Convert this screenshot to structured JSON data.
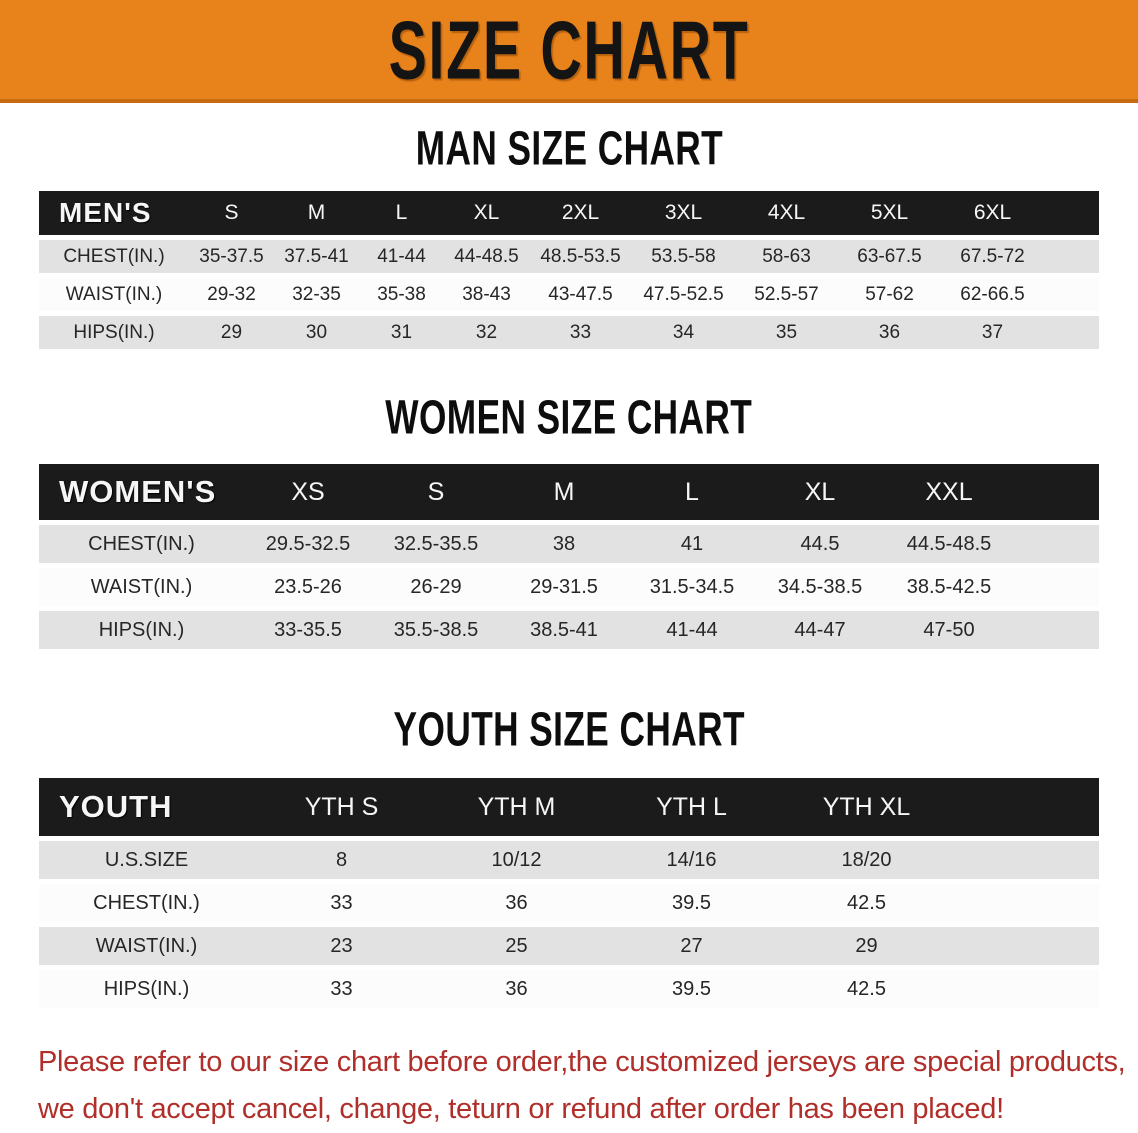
{
  "banner": {
    "title": "SIZE CHART",
    "bg_color": "#E8821B",
    "border_color": "#C76B10"
  },
  "colors": {
    "table_header_bg": "#1B1B1B",
    "row_shaded": "#E2E2E2",
    "row_plain": "#FCFCFC",
    "disclaimer_text": "#B02F2A"
  },
  "sections": [
    {
      "title": "MAN SIZE CHART",
      "table": {
        "label": "MEN'S",
        "columns": [
          "S",
          "M",
          "L",
          "XL",
          "2XL",
          "3XL",
          "4XL",
          "5XL",
          "6XL"
        ],
        "rows": [
          {
            "label": "CHEST(IN.)",
            "values": [
              "35-37.5",
              "37.5-41",
              "41-44",
              "44-48.5",
              "48.5-53.5",
              "53.5-58",
              "58-63",
              "63-67.5",
              "67.5-72"
            ]
          },
          {
            "label": "WAIST(IN.)",
            "values": [
              "29-32",
              "32-35",
              "35-38",
              "38-43",
              "43-47.5",
              "47.5-52.5",
              "52.5-57",
              "57-62",
              "62-66.5"
            ]
          },
          {
            "label": "HIPS(IN.)",
            "values": [
              "29",
              "30",
              "31",
              "32",
              "33",
              "34",
              "35",
              "36",
              "37"
            ]
          }
        ]
      }
    },
    {
      "title": "WOMEN SIZE CHART",
      "table": {
        "label": "WOMEN'S",
        "columns": [
          "XS",
          "S",
          "M",
          "L",
          "XL",
          "XXL"
        ],
        "rows": [
          {
            "label": "CHEST(IN.)",
            "values": [
              "29.5-32.5",
              "32.5-35.5",
              "38",
              "41",
              "44.5",
              "44.5-48.5"
            ]
          },
          {
            "label": "WAIST(IN.)",
            "values": [
              "23.5-26",
              "26-29",
              "29-31.5",
              "31.5-34.5",
              "34.5-38.5",
              "38.5-42.5"
            ]
          },
          {
            "label": "HIPS(IN.)",
            "values": [
              "33-35.5",
              "35.5-38.5",
              "38.5-41",
              "41-44",
              "44-47",
              "47-50"
            ]
          }
        ]
      }
    },
    {
      "title": "YOUTH SIZE CHART",
      "table": {
        "label": "YOUTH",
        "columns": [
          "YTH S",
          "YTH M",
          "YTH L",
          "YTH XL"
        ],
        "rows": [
          {
            "label": "U.S.SIZE",
            "values": [
              "8",
              "10/12",
              "14/16",
              "18/20"
            ]
          },
          {
            "label": "CHEST(IN.)",
            "values": [
              "33",
              "36",
              "39.5",
              "42.5"
            ]
          },
          {
            "label": "WAIST(IN.)",
            "values": [
              "23",
              "25",
              "27",
              "29"
            ]
          },
          {
            "label": "HIPS(IN.)",
            "values": [
              "33",
              "36",
              "39.5",
              "42.5"
            ]
          }
        ]
      }
    }
  ],
  "disclaimer": {
    "line1": "Please refer to our size chart before order,the customized jerseys are special products,",
    "line2": "we don't accept cancel, change, teturn or refund after order has been placed!"
  }
}
